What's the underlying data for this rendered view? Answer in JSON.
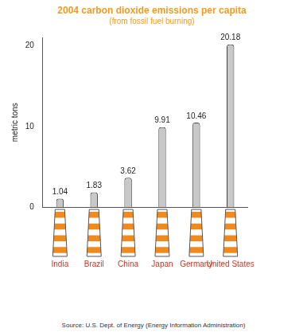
{
  "chart_data": {
    "type": "bar",
    "title": "2004 carbon dioxide emissions per capita",
    "subtitle": "(from fossil fuel burning)",
    "ylabel": "metric tons",
    "source": "Source: U.S. Dept. of Energy (Energy Information Administration)",
    "categories": [
      "India",
      "Brazil",
      "China",
      "Japan",
      "Germany",
      "United States"
    ],
    "values": [
      1.04,
      1.83,
      3.62,
      9.91,
      10.46,
      20.18
    ],
    "color": "#c8c8c8",
    "ylim": [
      0,
      21
    ],
    "yticks": [
      0,
      10,
      20
    ],
    "grid": false,
    "data_labels": true
  }
}
